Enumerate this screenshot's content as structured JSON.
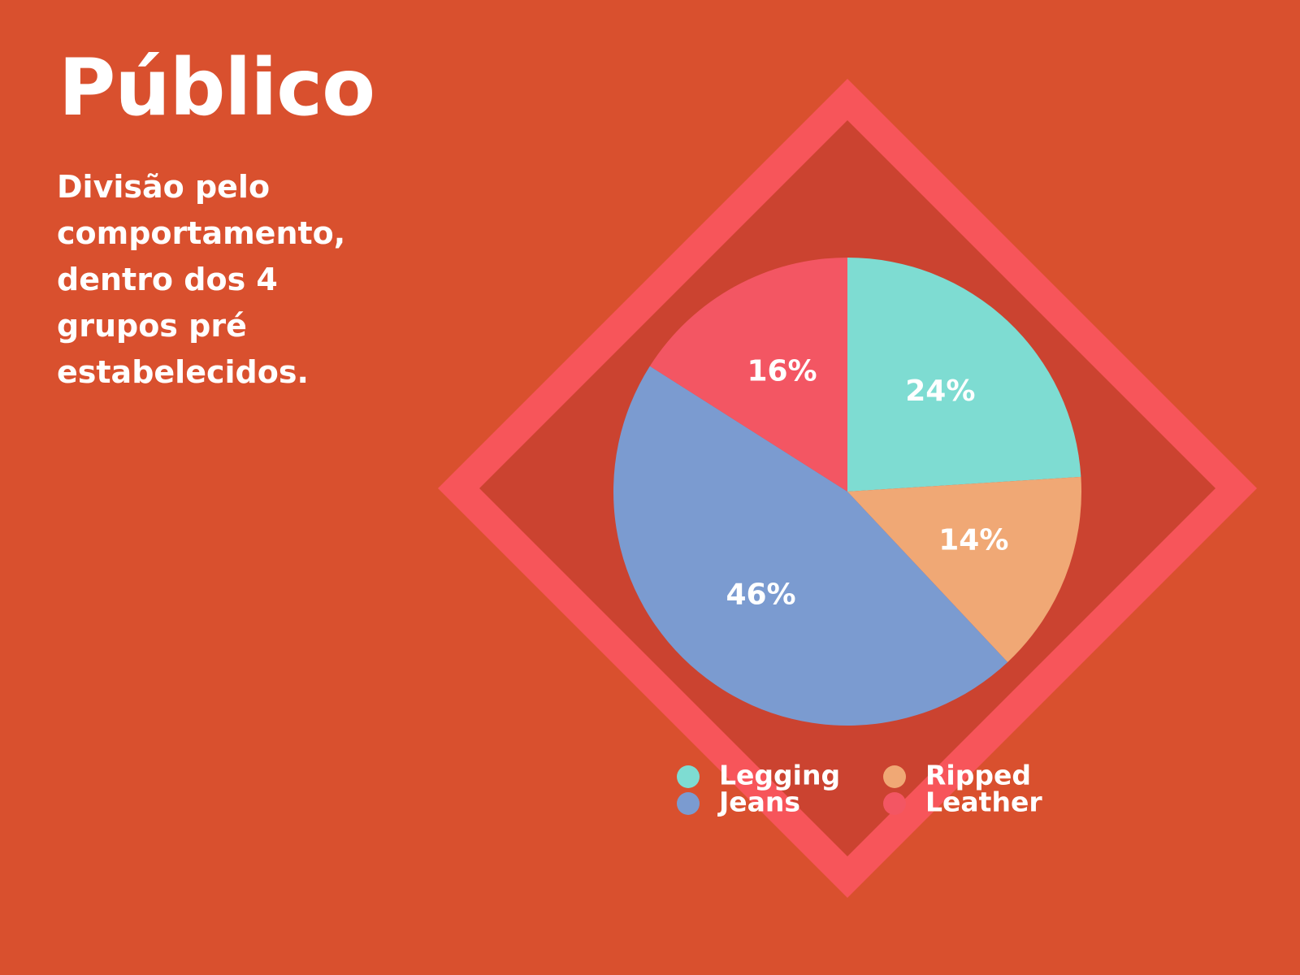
{
  "title": "Público",
  "subtitle": "Divisão pelo comportamento, dentro dos 4 grupos pré estabelecidos.",
  "chart_data": {
    "type": "pie",
    "categories": [
      "Legging",
      "Ripped",
      "Jeans",
      "Leather"
    ],
    "values": [
      24,
      14,
      46,
      16
    ],
    "value_labels": [
      "24%",
      "14%",
      "46%",
      "16%"
    ],
    "colors": [
      "#7edcd2",
      "#f0a875",
      "#7b9bd0",
      "#f35663"
    ]
  }
}
